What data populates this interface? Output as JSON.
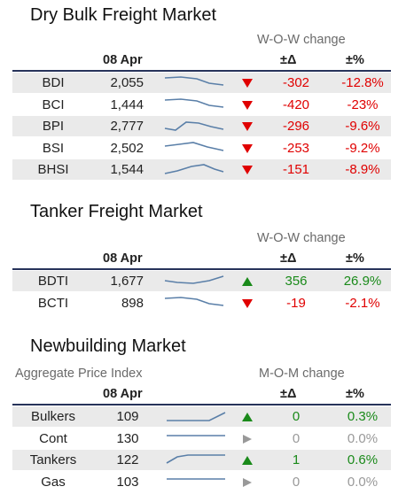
{
  "dry_bulk": {
    "title": "Dry Bulk Freight Market",
    "change_header": "W-O-W change",
    "date": "08 Apr",
    "delta_header": "±Δ",
    "pct_header": "±%",
    "rows": [
      {
        "name": "BDI",
        "value": "2,055",
        "delta": "-302",
        "pct": "-12.8%",
        "dir": "down",
        "spark_icon": "sparkline-declining"
      },
      {
        "name": "BCI",
        "value": "1,444",
        "delta": "-420",
        "pct": "-23%",
        "dir": "down",
        "spark_icon": "sparkline-declining"
      },
      {
        "name": "BPI",
        "value": "2,777",
        "delta": "-296",
        "pct": "-9.6%",
        "dir": "down",
        "spark_icon": "sparkline-wave"
      },
      {
        "name": "BSI",
        "value": "2,502",
        "delta": "-253",
        "pct": "-9.2%",
        "dir": "down",
        "spark_icon": "sparkline-peak-declining"
      },
      {
        "name": "BHSI",
        "value": "1,544",
        "delta": "-151",
        "pct": "-8.9%",
        "dir": "down",
        "spark_icon": "sparkline-peak"
      }
    ]
  },
  "tanker": {
    "title": "Tanker Freight Market",
    "change_header": "W-O-W change",
    "date": "08 Apr",
    "delta_header": "±Δ",
    "pct_header": "±%",
    "rows": [
      {
        "name": "BDTI",
        "value": "1,677",
        "delta": "356",
        "pct": "26.9%",
        "dir": "up",
        "spark_icon": "sparkline-rising"
      },
      {
        "name": "BCTI",
        "value": "898",
        "delta": "-19",
        "pct": "-2.1%",
        "dir": "down",
        "spark_icon": "sparkline-declining"
      }
    ]
  },
  "newbuilding": {
    "title": "Newbuilding Market",
    "subtitle": "Aggregate Price Index",
    "change_header": "M-O-M change",
    "date": "08 Apr",
    "delta_header": "±Δ",
    "pct_header": "±%",
    "rows": [
      {
        "name": "Bulkers",
        "value": "109",
        "delta": "0",
        "pct": "0.3%",
        "dir": "up",
        "spark_icon": "sparkline-flat-rising"
      },
      {
        "name": "Cont",
        "value": "130",
        "delta": "0",
        "pct": "0.0%",
        "dir": "flat",
        "spark_icon": "sparkline-flat"
      },
      {
        "name": "Tankers",
        "value": "122",
        "delta": "1",
        "pct": "0.6%",
        "dir": "up",
        "spark_icon": "sparkline-rising-flat"
      },
      {
        "name": "Gas",
        "value": "103",
        "delta": "0",
        "pct": "0.0%",
        "dir": "flat",
        "spark_icon": "sparkline-flat"
      }
    ]
  },
  "colors": {
    "down": "#e00000",
    "up": "#1a8a1a",
    "flat": "#999999",
    "spark": "#5a7fa8",
    "rule": "#27335a",
    "shade": "#eaeaea"
  }
}
